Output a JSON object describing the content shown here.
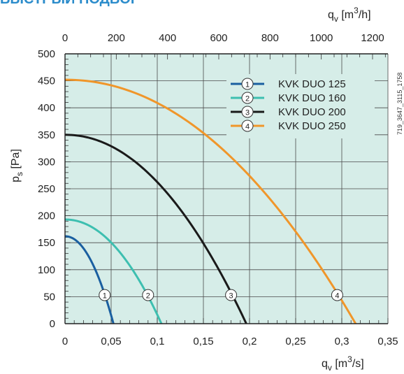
{
  "header": {
    "title": "БЫСТРЫЙ ПОДБОР"
  },
  "side_code": "719_3647_3115_1758",
  "chart_data": {
    "type": "line",
    "title": "",
    "xlabel": {
      "main": "q",
      "sub": "v",
      "unit": " [m",
      "sup": "3",
      "unit_end": "/s]"
    },
    "x2label": {
      "main": "q",
      "sub": "v",
      "unit": " [m",
      "sup": "3",
      "unit_end": "/h]"
    },
    "ylabel": {
      "main": "p",
      "sub": "s",
      "unit": " [Pa]"
    },
    "xlim": [
      0,
      0.35
    ],
    "ylim": [
      0,
      500
    ],
    "x_ticks": [
      0,
      0.05,
      0.1,
      0.15,
      0.2,
      0.25,
      0.3,
      0.35
    ],
    "x_tick_labels": [
      "0",
      "0,05",
      "0,1",
      "0,15",
      "0,2",
      "0,25",
      "0,3",
      "0,35"
    ],
    "x2_ticks": [
      0,
      200,
      400,
      600,
      800,
      1000,
      1200
    ],
    "x2_tick_labels": [
      "0",
      "200",
      "400",
      "600",
      "800",
      "1000",
      "1200"
    ],
    "y_ticks": [
      0,
      50,
      100,
      150,
      200,
      250,
      300,
      350,
      400,
      450,
      500
    ],
    "y_tick_labels": [
      "0",
      "50",
      "100",
      "150",
      "200",
      "250",
      "300",
      "350",
      "400",
      "450",
      "500"
    ],
    "grid": true,
    "legend_position": "top-right",
    "background": "#d6ede8",
    "series": [
      {
        "name": "KVK DUO 125",
        "marker": "1",
        "color": "#1a5fa0",
        "max_pressure": 162,
        "max_flow": 0.0525,
        "marker_flow": 0.043,
        "marker_pressure": 53
      },
      {
        "name": "KVK DUO 160",
        "marker": "2",
        "color": "#3dbfb0",
        "max_pressure": 193,
        "max_flow": 0.1045,
        "marker_flow": 0.09,
        "marker_pressure": 53
      },
      {
        "name": "KVK DUO 200",
        "marker": "3",
        "color": "#1a1a1a",
        "max_pressure": 350,
        "max_flow": 0.1965,
        "marker_flow": 0.18,
        "marker_pressure": 53
      },
      {
        "name": "KVK DUO 250",
        "marker": "4",
        "color": "#f0962a",
        "max_pressure": 452,
        "max_flow": 0.315,
        "marker_flow": 0.295,
        "marker_pressure": 53
      }
    ]
  }
}
